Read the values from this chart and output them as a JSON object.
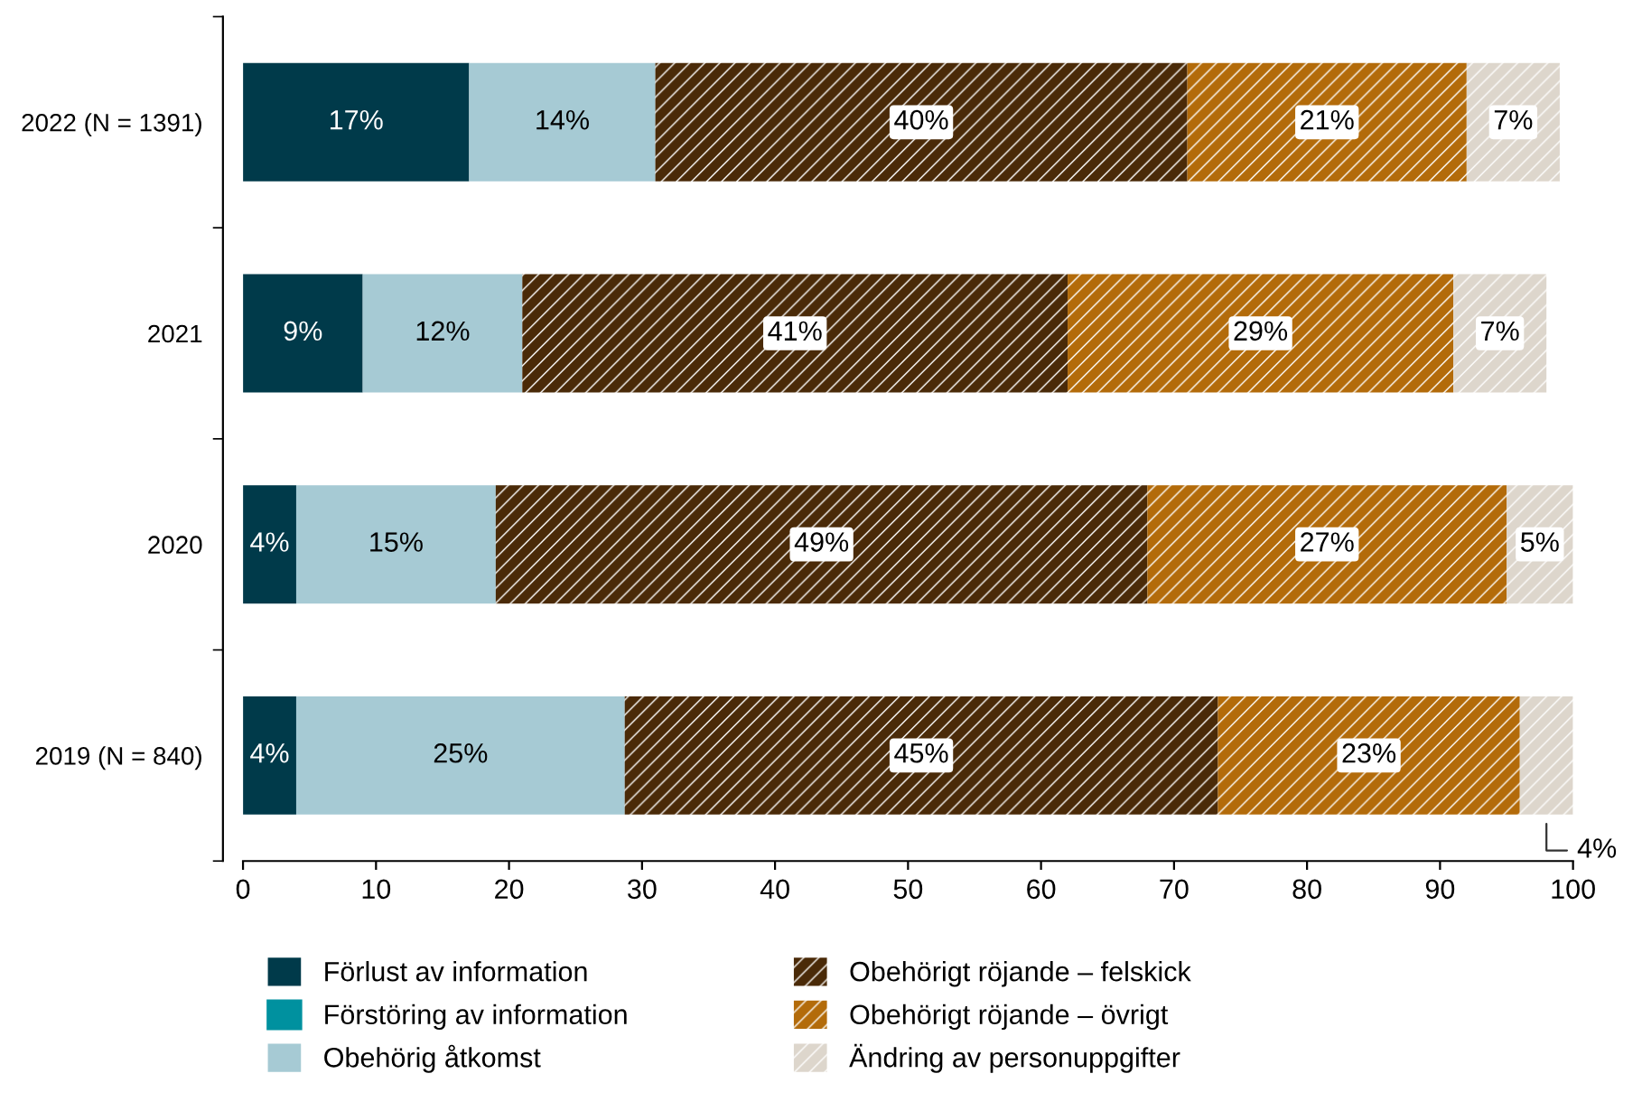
{
  "chart_data": {
    "type": "bar",
    "orientation": "horizontal",
    "stacked": true,
    "categories": [
      "2022 (N = 1391)",
      "2021",
      "2020",
      "2019 (N = 840)"
    ],
    "series": [
      {
        "name": "Förlust av information",
        "color": "#003a4a",
        "values": [
          17,
          9,
          4,
          4
        ],
        "value_labels": [
          "17%",
          "9%",
          "4%",
          "4%"
        ]
      },
      {
        "name": "Förstöring av information",
        "color": "#00919f",
        "values": [
          null,
          null,
          null,
          null
        ]
      },
      {
        "name": "Obehörig åtkomst",
        "color": "#a6cad4",
        "values": [
          14,
          12,
          15,
          24.7
        ],
        "value_labels": [
          "14%",
          "12%",
          "15%",
          "25%"
        ]
      },
      {
        "name": "Obehörigt röjande – felskick",
        "color": "#4a2a08",
        "values": [
          40,
          41,
          49,
          44.6
        ],
        "value_labels": [
          "40%",
          "41%",
          "49%",
          "45%"
        ]
      },
      {
        "name": "Obehörigt röjande – övrigt",
        "color": "#b36b0a",
        "values": [
          21,
          29,
          27,
          22.7
        ],
        "value_labels": [
          "21%",
          "29%",
          "27%",
          "23%"
        ]
      },
      {
        "name": "Ändring av personuppgifter",
        "color": "#ddd6cc",
        "values": [
          7,
          7,
          5,
          4
        ],
        "value_labels": [
          "7%",
          "7%",
          "5%",
          "4%"
        ]
      }
    ],
    "xlim": [
      0,
      100
    ],
    "xticks": [
      0,
      10,
      20,
      30,
      40,
      50,
      60,
      70,
      80,
      90,
      100
    ],
    "grid": false,
    "legend": "bottom"
  }
}
